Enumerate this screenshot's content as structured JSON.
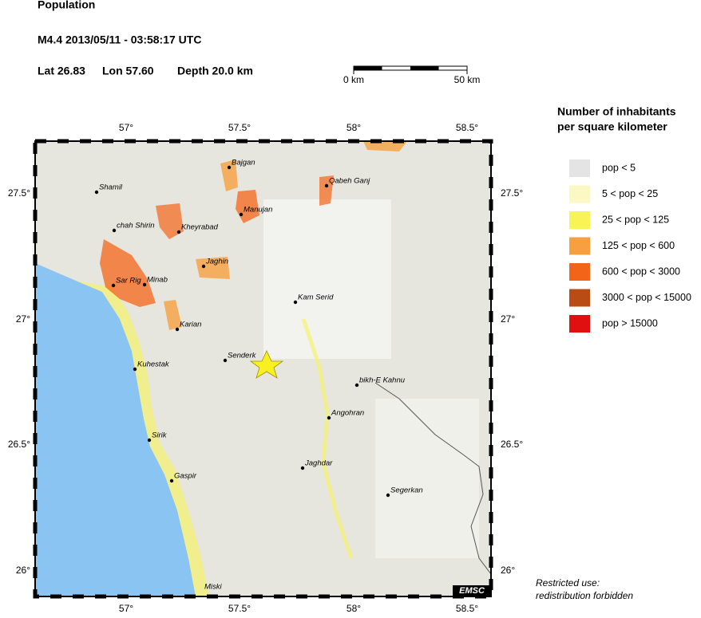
{
  "header": {
    "title": "Population",
    "event": "M4.4  2013/05/11 - 03:58:17 UTC",
    "lat": "Lat 26.83",
    "lon": "Lon 57.60",
    "depth": "Depth  20.0 km"
  },
  "scale_bar": {
    "start": "0 km",
    "end": "50 km"
  },
  "map": {
    "lon_labels": [
      "57°",
      "57.5°",
      "58°",
      "58.5°"
    ],
    "lat_labels": [
      "27.5°",
      "27°",
      "26.5°",
      "26°"
    ],
    "cities": [
      "Shamil",
      "chah Shirin",
      "Kheyrabad",
      "Bajgan",
      "Qabeh Ganj",
      "Manujan",
      "Jaghin",
      "Sar Rig",
      "Minab",
      "Karian",
      "Kam Serid",
      "Senderk",
      "Kuhestak",
      "bikh-E Kahnu",
      "Angohran",
      "Sirik",
      "Jaghdar",
      "Gaspir",
      "Segerkan",
      "Miski"
    ],
    "logo": "EMSC"
  },
  "legend": {
    "title_line1": "Number of inhabitants",
    "title_line2": "per square kilometer",
    "items": [
      {
        "label": "pop < 5",
        "color": "#e4e4e4"
      },
      {
        "label": "5 < pop < 25",
        "color": "#fbf8c4"
      },
      {
        "label": "25 < pop < 125",
        "color": "#f8f458"
      },
      {
        "label": "125 < pop < 600",
        "color": "#f8a040"
      },
      {
        "label": "600 < pop < 3000",
        "color": "#f46418"
      },
      {
        "label": "3000 < pop < 15000",
        "color": "#b84c14"
      },
      {
        "label": "pop > 15000",
        "color": "#e01010"
      }
    ]
  },
  "footer": {
    "line1": "Restricted use:",
    "line2": "redistribution forbidden"
  }
}
